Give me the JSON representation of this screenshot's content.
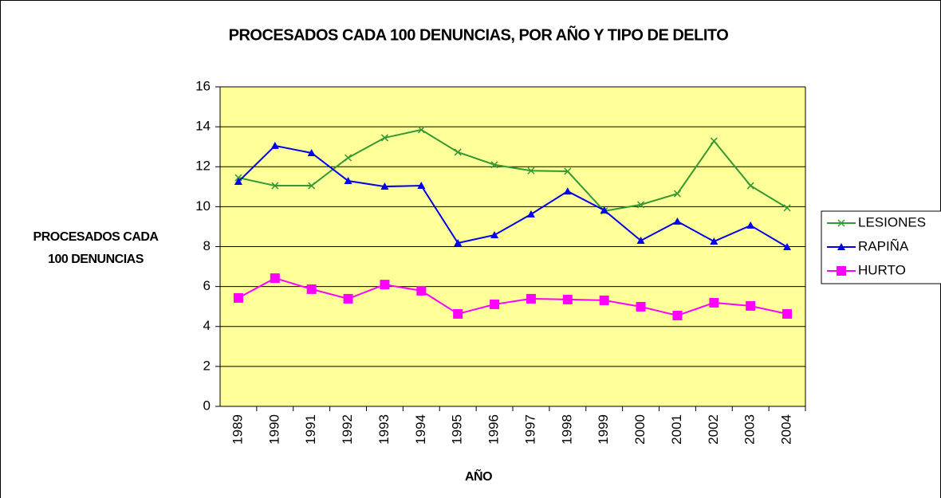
{
  "chart_data": {
    "type": "line",
    "title": "PROCESADOS CADA 100 DENUNCIAS, POR AÑO Y TIPO DE DELITO",
    "x_label": "AÑO",
    "y_label": [
      "PROCESADOS CADA",
      "100 DENUNCIAS"
    ],
    "categories": [
      "1989",
      "1990",
      "1991",
      "1992",
      "1993",
      "1994",
      "1995",
      "1996",
      "1997",
      "1998",
      "1999",
      "2000",
      "2001",
      "2002",
      "2003",
      "2004"
    ],
    "series": [
      {
        "name": "LESIONES",
        "color": "#339933",
        "marker": "x",
        "values": [
          11.45,
          11.05,
          11.05,
          12.45,
          13.45,
          13.85,
          12.73,
          12.1,
          11.8,
          11.77,
          9.78,
          10.1,
          10.65,
          13.29,
          11.05,
          9.94
        ]
      },
      {
        "name": "RAPIÑA",
        "color": "#0000ee",
        "marker": "triangle",
        "values": [
          11.25,
          13.05,
          12.69,
          11.29,
          11.01,
          11.05,
          8.18,
          8.58,
          9.62,
          10.77,
          9.82,
          8.3,
          9.26,
          8.26,
          9.06,
          7.98
        ]
      },
      {
        "name": "HURTO",
        "color": "#ff00ff",
        "marker": "square",
        "values": [
          5.43,
          6.42,
          5.87,
          5.39,
          6.1,
          5.79,
          4.63,
          5.11,
          5.39,
          5.35,
          5.31,
          4.99,
          4.55,
          5.19,
          5.03,
          4.63
        ]
      }
    ],
    "ylim": [
      0,
      16
    ],
    "yticks": [
      0,
      2,
      4,
      6,
      8,
      10,
      12,
      14,
      16
    ],
    "grid": true,
    "plot_background": "#ffff99",
    "legend": "right"
  }
}
